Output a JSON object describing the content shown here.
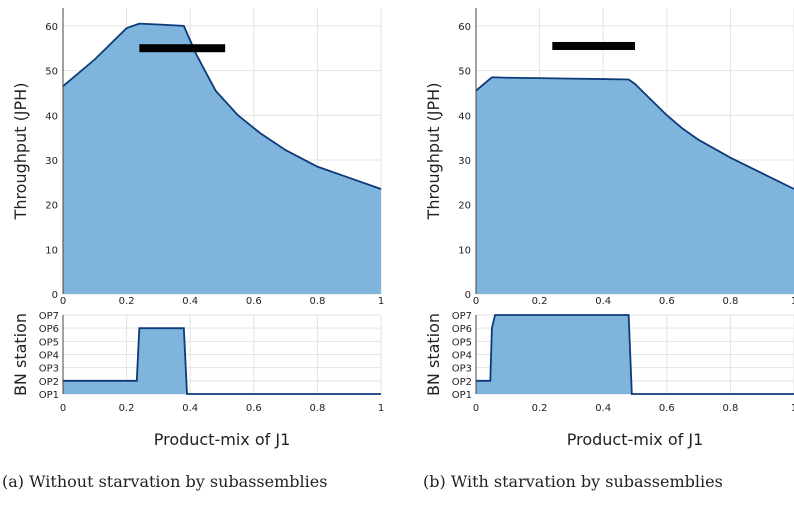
{
  "colors": {
    "fill": "#7fb5dd",
    "line": "#0d3a78",
    "grid": "#e3e3e3",
    "bar": "#000000"
  },
  "panels": [
    {
      "caption": "(a) Without starvation by subassemblies",
      "throughput": {
        "ylabel": "Throughput (JPH)",
        "ylim": [
          0,
          64
        ],
        "yticks": [
          "0",
          "10",
          "20",
          "30",
          "40",
          "50",
          "60"
        ],
        "xticks": [
          "0",
          "0.2",
          "0.4",
          "0.6",
          "0.8",
          "1"
        ]
      },
      "bn": {
        "ylabel": "BN station",
        "yticks": [
          "OP1",
          "OP2",
          "OP3",
          "OP4",
          "OP5",
          "OP6",
          "OP7"
        ],
        "xticks": [
          "0",
          "0.2",
          "0.4",
          "0.6",
          "0.8",
          "1"
        ]
      },
      "xlabel": "Product-mix of J1"
    },
    {
      "caption": "(b) With starvation by subassemblies",
      "throughput": {
        "ylabel": "Throughput (JPH)",
        "ylim": [
          0,
          64
        ],
        "yticks": [
          "0",
          "10",
          "20",
          "30",
          "40",
          "50",
          "60"
        ],
        "xticks": [
          "0",
          "0.2",
          "0.4",
          "0.6",
          "0.8",
          "1"
        ]
      },
      "bn": {
        "ylabel": "BN station",
        "yticks": [
          "OP1",
          "OP2",
          "OP3",
          "OP4",
          "OP5",
          "OP6",
          "OP7"
        ],
        "xticks": [
          "0",
          "0.2",
          "0.4",
          "0.6",
          "0.8",
          "1"
        ]
      },
      "xlabel": "Product-mix of J1"
    }
  ],
  "chart_data": [
    {
      "type": "area",
      "title": "",
      "xlabel": "",
      "ylabel": "Throughput (JPH)",
      "xlim": [
        0,
        1
      ],
      "ylim": [
        0,
        64
      ],
      "grid": true,
      "x": [
        0,
        0.05,
        0.1,
        0.15,
        0.2,
        0.24,
        0.3,
        0.38,
        0.42,
        0.48,
        0.55,
        0.62,
        0.7,
        0.8,
        0.9,
        1.0
      ],
      "y": [
        46.5,
        49.5,
        52.5,
        56,
        59.5,
        60.5,
        60.3,
        60,
        53.5,
        45.5,
        40,
        36,
        32.2,
        28.5,
        26,
        23.5
      ],
      "range_bar": [
        0.24,
        0.51,
        55
      ]
    },
    {
      "type": "area",
      "title": "",
      "xlabel": "Product-mix of J1",
      "ylabel": "BN station",
      "xlim": [
        0,
        1
      ],
      "grid": true,
      "categories_y": [
        "OP1",
        "OP2",
        "OP3",
        "OP4",
        "OP5",
        "OP6",
        "OP7"
      ],
      "x": [
        0,
        0.232,
        0.24,
        0.38,
        0.39,
        1.0
      ],
      "y": [
        2,
        2,
        6,
        6,
        1,
        1
      ]
    },
    {
      "type": "area",
      "title": "",
      "xlabel": "",
      "ylabel": "Throughput (JPH)",
      "xlim": [
        0,
        1
      ],
      "ylim": [
        0,
        64
      ],
      "grid": true,
      "x": [
        0,
        0.05,
        0.1,
        0.2,
        0.3,
        0.4,
        0.48,
        0.5,
        0.55,
        0.6,
        0.65,
        0.7,
        0.8,
        0.9,
        1.0
      ],
      "y": [
        45.5,
        48.5,
        48.4,
        48.3,
        48.2,
        48.1,
        48,
        47,
        43.5,
        40,
        37,
        34.5,
        30.5,
        27,
        23.5
      ],
      "range_bar": [
        0.24,
        0.5,
        55.5
      ]
    },
    {
      "type": "area",
      "title": "",
      "xlabel": "Product-mix of J1",
      "ylabel": "BN station",
      "xlim": [
        0,
        1
      ],
      "grid": true,
      "categories_y": [
        "OP1",
        "OP2",
        "OP3",
        "OP4",
        "OP5",
        "OP6",
        "OP7"
      ],
      "x": [
        0,
        0.045,
        0.05,
        0.06,
        0.1,
        0.3,
        0.48,
        0.49,
        1.0
      ],
      "y": [
        2,
        2,
        6,
        7,
        7,
        7,
        7,
        1,
        1
      ]
    }
  ]
}
